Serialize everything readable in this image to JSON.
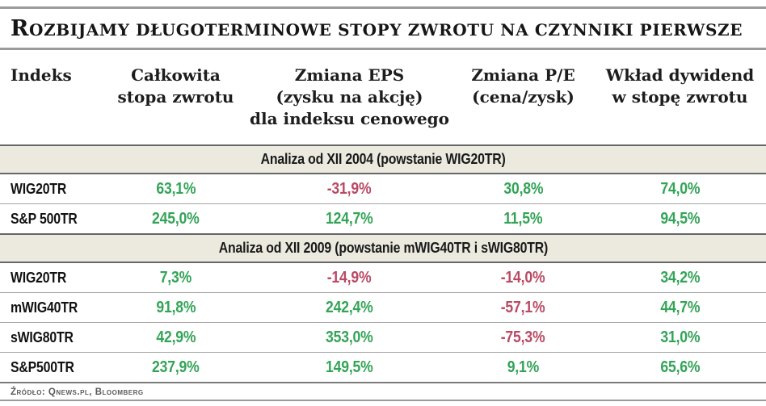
{
  "chart_data": {
    "type": "table",
    "title": "Rozbijamy długoterminowe stopy zwrotu na czynniki pierwsze",
    "columns": [
      {
        "label": "Indeks",
        "lines": [
          "Indeks"
        ]
      },
      {
        "label": "Całkowita stopa zwrotu",
        "lines": [
          "Całkowita",
          "stopa zwrotu"
        ]
      },
      {
        "label": "Zmiana EPS (zysku na akcję) dla indeksu cenowego",
        "lines": [
          "Zmiana EPS",
          "(zysku na akcję)",
          "dla indeksu cenowego"
        ]
      },
      {
        "label": "Zmiana P/E (cena/zysk)",
        "lines": [
          "Zmiana P/E",
          "(cena/zysk)"
        ]
      },
      {
        "label": "Wkład dywidend w stopę zwrotu",
        "lines": [
          "Wkład dywidend",
          "w stopę zwrotu"
        ]
      }
    ],
    "sections": [
      {
        "header": "Analiza od XII 2004 (powstanie WIG20TR)",
        "rows": [
          {
            "index": "WIG20TR",
            "values": [
              "63,1%",
              "-31,9%",
              "30,8%",
              "74,0%"
            ]
          },
          {
            "index": "S&P 500TR",
            "values": [
              "245,0%",
              "124,7%",
              "11,5%",
              "94,5%"
            ]
          }
        ]
      },
      {
        "header": "Analiza od XII 2009 (powstanie mWIG40TR i sWIG80TR)",
        "rows": [
          {
            "index": "WIG20TR",
            "values": [
              "7,3%",
              "-14,9%",
              "-14,0%",
              "34,2%"
            ]
          },
          {
            "index": "mWIG40TR",
            "values": [
              "91,8%",
              "242,4%",
              "-57,1%",
              "44,7%"
            ]
          },
          {
            "index": "sWIG80TR",
            "values": [
              "42,9%",
              "353,0%",
              "-75,3%",
              "31,0%"
            ]
          },
          {
            "index": "S&P500TR",
            "values": [
              "237,9%",
              "149,5%",
              "9,1%",
              "65,6%"
            ]
          }
        ]
      }
    ],
    "source": "Źródło: Qnews.pl, Bloomberg"
  },
  "colors": {
    "positive": "#33a457",
    "negative": "#b94a64",
    "band_bg": "#eceadf",
    "band_border": "#666666",
    "rule": "#9b9b9b",
    "row_separator": "#a6a6a6"
  }
}
